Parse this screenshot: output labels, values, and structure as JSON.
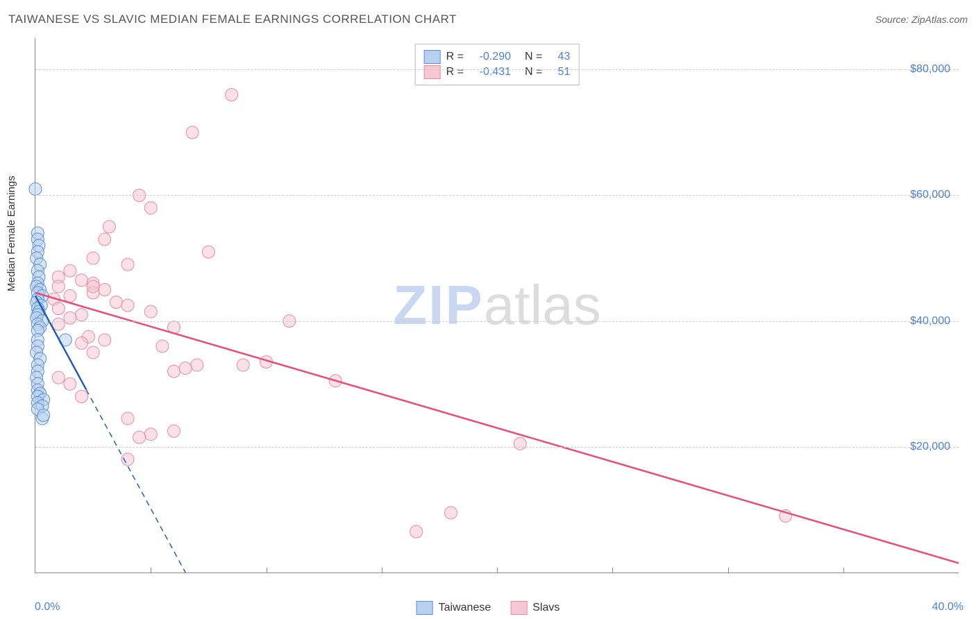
{
  "title": "TAIWANESE VS SLAVIC MEDIAN FEMALE EARNINGS CORRELATION CHART",
  "source_prefix": "Source: ",
  "source_name": "ZipAtlas.com",
  "ylabel": "Median Female Earnings",
  "watermark_zip": "ZIP",
  "watermark_atlas": "atlas",
  "x_axis": {
    "min_label": "0.0%",
    "max_label": "40.0%",
    "min": 0,
    "max": 40,
    "tick_positions": [
      5,
      10,
      15,
      20,
      25,
      30,
      35
    ]
  },
  "y_axis": {
    "min": 0,
    "max": 85000,
    "gridlines": [
      {
        "value": 20000,
        "label": "$20,000"
      },
      {
        "value": 40000,
        "label": "$40,000"
      },
      {
        "value": 60000,
        "label": "$60,000"
      },
      {
        "value": 80000,
        "label": "$80,000"
      }
    ]
  },
  "stats": [
    {
      "series": "taiwanese",
      "r_label": "R =",
      "r_val": "-0.290",
      "n_label": "N =",
      "n_val": "43"
    },
    {
      "series": "slavs",
      "r_label": "R =",
      "r_val": "-0.431",
      "n_label": "N =",
      "n_val": "51"
    }
  ],
  "legend": [
    {
      "key": "taiwanese",
      "label": "Taiwanese"
    },
    {
      "key": "slavs",
      "label": "Slavs"
    }
  ],
  "series_style": {
    "taiwanese": {
      "fill": "#b9d1f0",
      "stroke": "#5a8fd6",
      "line": "#1f5dbb"
    },
    "slavs": {
      "fill": "#f6c7d4",
      "stroke": "#e68aa6",
      "line": "#e94b7a"
    }
  },
  "marker_radius": 9,
  "marker_opacity": 0.55,
  "line_width": 2.5,
  "trend_lines": {
    "taiwanese": {
      "x1": 0,
      "y1": 44000,
      "x2": 6.5,
      "y2": 0,
      "solid_until_x": 2.2
    },
    "slavs": {
      "x1": 0,
      "y1": 44500,
      "x2": 40,
      "y2": 1500
    }
  },
  "points": {
    "taiwanese": [
      [
        0.0,
        61000
      ],
      [
        0.1,
        54000
      ],
      [
        0.1,
        53000
      ],
      [
        0.15,
        52000
      ],
      [
        0.1,
        51000
      ],
      [
        0.05,
        50000
      ],
      [
        0.2,
        49000
      ],
      [
        0.1,
        48000
      ],
      [
        0.15,
        47000
      ],
      [
        0.1,
        46000
      ],
      [
        0.05,
        45500
      ],
      [
        0.2,
        45000
      ],
      [
        0.1,
        44500
      ],
      [
        0.3,
        44000
      ],
      [
        0.1,
        43500
      ],
      [
        0.05,
        43000
      ],
      [
        0.25,
        42500
      ],
      [
        0.1,
        42000
      ],
      [
        0.15,
        41500
      ],
      [
        0.1,
        41000
      ],
      [
        0.05,
        40500
      ],
      [
        0.3,
        40000
      ],
      [
        0.1,
        39500
      ],
      [
        0.2,
        39000
      ],
      [
        0.1,
        38500
      ],
      [
        1.3,
        37000
      ],
      [
        0.1,
        37000
      ],
      [
        0.1,
        36000
      ],
      [
        0.05,
        35000
      ],
      [
        0.2,
        34000
      ],
      [
        0.1,
        33000
      ],
      [
        0.1,
        32000
      ],
      [
        0.05,
        31000
      ],
      [
        0.1,
        30000
      ],
      [
        0.1,
        29000
      ],
      [
        0.2,
        28500
      ],
      [
        0.1,
        28000
      ],
      [
        0.35,
        27500
      ],
      [
        0.1,
        27000
      ],
      [
        0.3,
        26500
      ],
      [
        0.1,
        26000
      ],
      [
        0.3,
        24500
      ],
      [
        0.35,
        25000
      ]
    ],
    "slavs": [
      [
        8.5,
        76000
      ],
      [
        6.8,
        70000
      ],
      [
        4.5,
        60000
      ],
      [
        5.0,
        58000
      ],
      [
        3.2,
        55000
      ],
      [
        3.0,
        53000
      ],
      [
        7.5,
        51000
      ],
      [
        2.5,
        50000
      ],
      [
        4.0,
        49000
      ],
      [
        1.5,
        48000
      ],
      [
        1.0,
        47000
      ],
      [
        2.0,
        46500
      ],
      [
        2.5,
        46000
      ],
      [
        1.0,
        45500
      ],
      [
        3.0,
        45000
      ],
      [
        2.5,
        44500
      ],
      [
        1.5,
        44000
      ],
      [
        0.8,
        43500
      ],
      [
        3.5,
        43000
      ],
      [
        4.0,
        42500
      ],
      [
        1.0,
        42000
      ],
      [
        5.0,
        41500
      ],
      [
        2.0,
        41000
      ],
      [
        1.5,
        40500
      ],
      [
        11.0,
        40000
      ],
      [
        1.0,
        39500
      ],
      [
        6.0,
        39000
      ],
      [
        2.3,
        37500
      ],
      [
        3.0,
        37000
      ],
      [
        2.0,
        36500
      ],
      [
        5.5,
        36000
      ],
      [
        2.5,
        35000
      ],
      [
        7.0,
        33000
      ],
      [
        9.0,
        33000
      ],
      [
        10.0,
        33500
      ],
      [
        6.0,
        32000
      ],
      [
        6.5,
        32500
      ],
      [
        1.0,
        31000
      ],
      [
        13.0,
        30500
      ],
      [
        1.5,
        30000
      ],
      [
        2.0,
        28000
      ],
      [
        4.0,
        24500
      ],
      [
        5.0,
        22000
      ],
      [
        6.0,
        22500
      ],
      [
        4.5,
        21500
      ],
      [
        4.0,
        18000
      ],
      [
        21.0,
        20500
      ],
      [
        32.5,
        9000
      ],
      [
        16.5,
        6500
      ],
      [
        18.0,
        9500
      ],
      [
        2.5,
        45500
      ]
    ]
  }
}
